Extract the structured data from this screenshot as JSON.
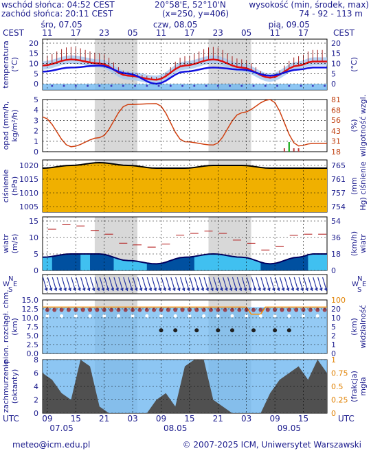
{
  "header": {
    "sunrise": "wschód słońca: 04:52 CEST",
    "sunset": "zachód słońca: 20:11 CEST",
    "coords": "20°58'E, 52°10'N",
    "grid": "(x=250, y=406)",
    "elevation_label": "wysokość (min, środek, max)",
    "elevation_values": "74 - 92 - 113 m"
  },
  "footer": {
    "email": "meteo@icm.edu.pl",
    "copyright": "© 2007-2025 ICM, Uniwersytet Warszawski"
  },
  "time_axis": {
    "tz_top": "CEST",
    "tz_bottom": "UTC",
    "days_top": [
      "śro, 07.05",
      "czw, 08.05",
      "pią, 09.05"
    ],
    "hours_top": [
      "11",
      "17",
      "23",
      "05",
      "11",
      "17",
      "23",
      "05",
      "11",
      "17"
    ],
    "hours_bottom": [
      "09",
      "15",
      "21",
      "03",
      "09",
      "15",
      "21",
      "03",
      "09",
      "15"
    ],
    "dates_bottom": [
      "07.05",
      "08.05",
      "09.05"
    ]
  },
  "panels": {
    "temperature": {
      "ylabel": "temperatura (°C)",
      "ylabel_right": "(°C)",
      "ticks": [
        0,
        5,
        10,
        15,
        20
      ]
    },
    "precip": {
      "ylabel": "opad (mm/h, kg/m²/h)",
      "ylabel_right": "(%) wilgotność wzgl.",
      "ticks": [
        0,
        1,
        2,
        3,
        4,
        5
      ],
      "ticks_right": [
        18,
        31,
        43,
        56,
        68,
        81
      ]
    },
    "pressure": {
      "ylabel": "ciśnienie (hPa)",
      "ylabel_right": "(mm Hg) ciśnienie",
      "ticks": [
        1005,
        1010,
        1015,
        1020
      ],
      "ticks_right": [
        754,
        757,
        761,
        765
      ]
    },
    "wind": {
      "ylabel": "wiatr (m/s)",
      "ylabel_right": "(km/h) wiatr",
      "ticks": [
        0,
        5,
        10,
        15
      ],
      "ticks_right": [
        0,
        18,
        36,
        54
      ]
    },
    "wind_dir": {
      "compass_n": "N",
      "compass_s": "S",
      "compass_w": "W",
      "compass_e": "E"
    },
    "visibility": {
      "ylabel": "pion. rozciągł. chm. (km)",
      "ylabel_right": "(km) widzialność",
      "ticks": [
        0.0,
        2.5,
        5.0,
        7.5,
        10.0,
        12.5,
        15.0
      ],
      "ticks_right": [
        0,
        1,
        2,
        5,
        10,
        20,
        100
      ]
    },
    "cloud": {
      "ylabel": "zachmurzenie (oktanty)",
      "ylabel_right": "(frakcja) mgła",
      "ticks": [
        0,
        2,
        4,
        6,
        8
      ],
      "ticks_right": [
        0,
        0.25,
        0.5,
        0.75,
        1
      ]
    }
  },
  "colors": {
    "temp_line": "#e01010",
    "dew_line": "#1010e0",
    "band": "#a6c8f0",
    "humidity": "#d04010",
    "pressure_fill": "#f0b000",
    "wind_dark": "#0050a0",
    "wind_light": "#40c0f0",
    "night": "#d8d8d8",
    "cloud_dark": "#505050",
    "sky": "#70b8f0",
    "fog": "#ff9000"
  },
  "chart_data": {
    "type": "line",
    "x_hours_from_start": [
      0,
      6,
      12,
      18,
      24,
      30,
      36,
      42,
      48,
      54,
      57
    ],
    "temperature": [
      9,
      12,
      10,
      4,
      2,
      9,
      12,
      8,
      3,
      9,
      11
    ],
    "dew_point": [
      6,
      8,
      9,
      5,
      0,
      6,
      8,
      7,
      4,
      7,
      8
    ],
    "humidity": [
      60,
      24,
      35,
      75,
      76,
      30,
      26,
      65,
      81,
      25,
      28
    ],
    "pressure": [
      1019,
      1020,
      1021,
      1020,
      1019,
      1019,
      1020,
      1020,
      1019,
      1019,
      1019
    ],
    "wind_speed": [
      4,
      5,
      5,
      3,
      2,
      4,
      5,
      4,
      2,
      4,
      5
    ],
    "wind_gust": [
      12,
      14,
      12,
      8,
      7,
      11,
      12,
      9,
      6,
      11,
      11
    ]
  }
}
